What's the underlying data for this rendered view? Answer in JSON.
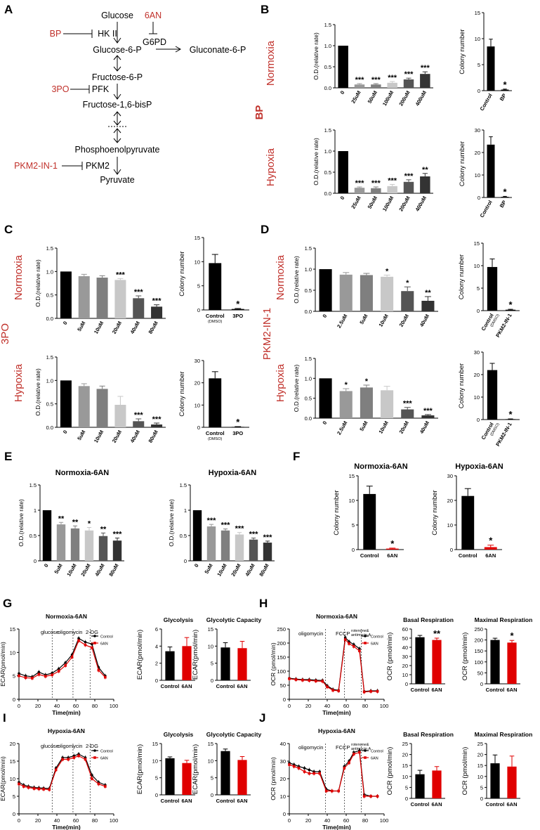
{
  "panels": {
    "A": "A",
    "B": "B",
    "C": "C",
    "D": "D",
    "E": "E",
    "F": "F",
    "G": "G",
    "H": "H",
    "I": "I",
    "J": "J"
  },
  "pathway": {
    "glucose": "Glucose",
    "g6p": "Glucose-6-P",
    "gluconate": "Gluconate-6-P",
    "g6pd": "G6PD",
    "f6p": "Fructose-6-P",
    "f16bp": "Fructose-1,6-bisP",
    "pep": "Phosphoenolpyruvate",
    "pyruvate": "Pyruvate",
    "hk2": "HK II",
    "pfk": "PFK",
    "pkm2": "PKM2",
    "inh_6an": "6AN",
    "inh_bp": "BP",
    "inh_3po": "3PO",
    "inh_pkm2": "PKM2-IN-1"
  },
  "labels": {
    "normoxia": "Normoxia",
    "hypoxia": "Hypoxia",
    "bp": "BP",
    "po3": "3PO",
    "pkm2": "PKM2-IN-1",
    "od": "O.D.(relative rate)",
    "colony": "Colony number",
    "ecar": "ECAR(pmol/min)",
    "ocr": "OCR (pmol/min)",
    "time": "Time(min)",
    "control": "Control",
    "dmso": "(DMSO)",
    "an6": "6AN",
    "norm6an": "Normoxia-6AN",
    "hyp6an": "Hypoxia-6AN",
    "glycolysis": "Glycolysis",
    "capacity": "Glycolytic Capacity",
    "basal": "Basal Respiration",
    "maximal": "Maximal Respiration",
    "inj_glucose": "glucose",
    "inj_oligo": "oligomycin",
    "inj_2dg": "2-DG",
    "inj_fccp": "FCCP",
    "inj_rot1": "rotenone&",
    "inj_rot2": "antimycin A"
  },
  "chart_data": [
    {
      "id": "B-norm-od",
      "type": "bar",
      "categories": [
        "0",
        "25uM",
        "50uM",
        "100uM",
        "200uM",
        "400uM"
      ],
      "values": [
        1.0,
        0.08,
        0.08,
        0.12,
        0.2,
        0.33
      ],
      "errors": [
        0,
        0.02,
        0.02,
        0.03,
        0.03,
        0.05
      ],
      "stars": [
        "",
        "***",
        "***",
        "***",
        "***",
        "***"
      ],
      "ylim": [
        0,
        1.5
      ],
      "yticks": [
        "0.0",
        "0.5",
        "1.0",
        "1.5"
      ],
      "ylabel": "O.D.(relative rate)"
    },
    {
      "id": "B-norm-col",
      "type": "bar",
      "categories": [
        "Control",
        "BP"
      ],
      "values": [
        8.5,
        0.2
      ],
      "errors": [
        1.4,
        0.1
      ],
      "stars": [
        "",
        "*"
      ],
      "ylim": [
        0,
        15
      ],
      "yticks": [
        "0",
        "5",
        "10",
        "15"
      ],
      "ylabel": "Colony number"
    },
    {
      "id": "B-hyp-od",
      "type": "bar",
      "categories": [
        "0",
        "25uM",
        "50uM",
        "100uM",
        "200uM",
        "400uM"
      ],
      "values": [
        1.0,
        0.13,
        0.12,
        0.17,
        0.27,
        0.4
      ],
      "errors": [
        0,
        0.02,
        0.03,
        0.04,
        0.05,
        0.07
      ],
      "stars": [
        "",
        "***",
        "***",
        "***",
        "***",
        "**"
      ],
      "ylim": [
        0,
        1.5
      ],
      "yticks": [
        "0.0",
        "0.5",
        "1.0",
        "1.5"
      ],
      "ylabel": "O.D.(relative rate)"
    },
    {
      "id": "B-hyp-col",
      "type": "bar",
      "categories": [
        "Control",
        "BP"
      ],
      "values": [
        23.5,
        0.3
      ],
      "errors": [
        3.5,
        0.2
      ],
      "stars": [
        "",
        "*"
      ],
      "ylim": [
        0,
        30
      ],
      "yticks": [
        "0",
        "10",
        "20",
        "30"
      ],
      "ylabel": "Colony number"
    },
    {
      "id": "C-norm-od",
      "type": "bar",
      "categories": [
        "0",
        "5uM",
        "10uM",
        "20uM",
        "40uM",
        "80uM"
      ],
      "values": [
        1.0,
        0.9,
        0.87,
        0.82,
        0.43,
        0.25
      ],
      "errors": [
        0,
        0.04,
        0.04,
        0.03,
        0.05,
        0.04
      ],
      "stars": [
        "",
        "",
        "",
        "***",
        "***",
        "***"
      ],
      "ylim": [
        0,
        1.5
      ],
      "yticks": [
        "0.0",
        "0.5",
        "1.0",
        "1.5"
      ],
      "ylabel": "O.D.(relative rate)"
    },
    {
      "id": "C-norm-col",
      "type": "bar",
      "categories": [
        "Control",
        "3PO"
      ],
      "values": [
        9.7,
        0.2
      ],
      "errors": [
        1.8,
        0.1
      ],
      "stars": [
        "",
        "*"
      ],
      "ylim": [
        0,
        15
      ],
      "yticks": [
        "0",
        "5",
        "10",
        "15"
      ],
      "ylabel": "Colony number"
    },
    {
      "id": "C-hyp-od",
      "type": "bar",
      "categories": [
        "0",
        "5uM",
        "10uM",
        "20uM",
        "40uM",
        "80uM"
      ],
      "values": [
        1.0,
        0.88,
        0.82,
        0.48,
        0.13,
        0.06
      ],
      "errors": [
        0,
        0.05,
        0.06,
        0.18,
        0.05,
        0.03
      ],
      "stars": [
        "",
        "",
        "",
        "",
        "***",
        "***"
      ],
      "ylim": [
        0,
        1.5
      ],
      "yticks": [
        "0.0",
        "0.5",
        "1.0",
        "1.5"
      ],
      "ylabel": "O.D.(relative rate)"
    },
    {
      "id": "C-hyp-col",
      "type": "bar",
      "categories": [
        "Control",
        "3PO"
      ],
      "values": [
        22,
        0.2
      ],
      "errors": [
        3,
        0.1
      ],
      "stars": [
        "",
        "*"
      ],
      "ylim": [
        0,
        30
      ],
      "yticks": [
        "0",
        "10",
        "20",
        "30"
      ],
      "ylabel": "Colony number"
    },
    {
      "id": "D-norm-od",
      "type": "bar",
      "categories": [
        "0",
        "2.5uM",
        "5uM",
        "10uM",
        "20uM",
        "40uM"
      ],
      "values": [
        1.0,
        0.87,
        0.86,
        0.82,
        0.48,
        0.25
      ],
      "errors": [
        0,
        0.05,
        0.04,
        0.04,
        0.1,
        0.1
      ],
      "stars": [
        "",
        "",
        "",
        "*",
        "*",
        "**"
      ],
      "ylim": [
        0,
        1.5
      ],
      "yticks": [
        "0.0",
        "0.5",
        "1.0",
        "1.5"
      ],
      "ylabel": "O.D.(relative rate)"
    },
    {
      "id": "D-norm-col",
      "type": "bar",
      "categories": [
        "Control",
        "PKM2-IN-1"
      ],
      "values": [
        9.7,
        0.2
      ],
      "errors": [
        1.8,
        0.1
      ],
      "stars": [
        "",
        "*"
      ],
      "ylim": [
        0,
        15
      ],
      "yticks": [
        "0",
        "5",
        "10",
        "15"
      ],
      "ylabel": "Colony number"
    },
    {
      "id": "D-hyp-od",
      "type": "bar",
      "categories": [
        "0",
        "2.5uM",
        "5uM",
        "10uM",
        "20uM",
        "40uM"
      ],
      "values": [
        1.0,
        0.68,
        0.77,
        0.7,
        0.22,
        0.07
      ],
      "errors": [
        0,
        0.06,
        0.06,
        0.1,
        0.05,
        0.02
      ],
      "stars": [
        "",
        "*",
        "*",
        "",
        "***",
        "***"
      ],
      "ylim": [
        0,
        1.5
      ],
      "yticks": [
        "0.0",
        "0.5",
        "1.0",
        "1.5"
      ],
      "ylabel": "O.D.(relative rate)"
    },
    {
      "id": "D-hyp-col",
      "type": "bar",
      "categories": [
        "Control",
        "PKM2-IN-1"
      ],
      "values": [
        22,
        0.2
      ],
      "errors": [
        3,
        0.1
      ],
      "stars": [
        "",
        "*"
      ],
      "ylim": [
        0,
        30
      ],
      "yticks": [
        "0",
        "10",
        "20",
        "30"
      ],
      "ylabel": "Colony number"
    },
    {
      "id": "E-norm",
      "type": "bar",
      "title": "Normoxia-6AN",
      "categories": [
        "0",
        "5uM",
        "10uM",
        "20uM",
        "40uM",
        "80uM"
      ],
      "values": [
        1.0,
        0.72,
        0.64,
        0.6,
        0.49,
        0.4
      ],
      "errors": [
        0,
        0.04,
        0.05,
        0.06,
        0.06,
        0.05
      ],
      "stars": [
        "",
        "**",
        "**",
        "*",
        "**",
        "***"
      ],
      "ylim": [
        0,
        1.5
      ],
      "yticks": [
        "0",
        "0.5",
        "1",
        "1.5"
      ],
      "ylabel": "O.D.(relative rate)"
    },
    {
      "id": "E-hyp",
      "type": "bar",
      "title": "Hypoxia-6AN",
      "categories": [
        "0",
        "5uM",
        "10uM",
        "20uM",
        "40uM",
        "80uM"
      ],
      "values": [
        1.0,
        0.68,
        0.6,
        0.52,
        0.42,
        0.36
      ],
      "errors": [
        0,
        0.04,
        0.03,
        0.04,
        0.03,
        0.03
      ],
      "stars": [
        "",
        "***",
        "***",
        "***",
        "***",
        "***"
      ],
      "ylim": [
        0,
        1.5
      ],
      "yticks": [
        "0",
        "0.5",
        "1",
        "1.5"
      ],
      "ylabel": "O.D.(relative rate)"
    },
    {
      "id": "F-norm",
      "type": "bar",
      "title": "Normoxia-6AN",
      "categories": [
        "Control",
        "6AN"
      ],
      "values": [
        11.3,
        0.2
      ],
      "errors": [
        1.6,
        0.1
      ],
      "stars": [
        "",
        "*"
      ],
      "ylim": [
        0,
        15
      ],
      "yticks": [
        "0",
        "5",
        "10",
        "15"
      ],
      "ylabel": "Colony number"
    },
    {
      "id": "F-hyp",
      "type": "bar",
      "title": "Hypoxia-6AN",
      "categories": [
        "Control",
        "6AN"
      ],
      "values": [
        21.8,
        1.0
      ],
      "errors": [
        3.0,
        0.8
      ],
      "stars": [
        "",
        "*"
      ],
      "ylim": [
        0,
        30
      ],
      "yticks": [
        "0",
        "10",
        "20",
        "30"
      ],
      "ylabel": "Colony number"
    },
    {
      "id": "G-line",
      "type": "line",
      "title": "Normoxia-6AN",
      "x": [
        0,
        7,
        14,
        21,
        28,
        35,
        42,
        49,
        56,
        63,
        70,
        77,
        84,
        91
      ],
      "series": [
        {
          "name": "Control",
          "values": [
            5.5,
            5,
            4.8,
            5.8,
            5.2,
            5.6,
            6.5,
            7.8,
            9.5,
            13,
            12.2,
            11.8,
            6.8,
            5
          ]
        },
        {
          "name": "6AN",
          "values": [
            5,
            4.6,
            4.5,
            5.3,
            4.9,
            5.2,
            6,
            7.2,
            9,
            12.5,
            11.6,
            11,
            6.2,
            4.7
          ]
        }
      ],
      "ylim": [
        0,
        15
      ],
      "xlim": [
        0,
        100
      ],
      "yticks": [
        "0",
        "5",
        "10",
        "15"
      ],
      "xticks": [
        "0",
        "20",
        "40",
        "60",
        "80",
        "100"
      ],
      "ylabel": "ECAR(pmol/min)",
      "xlabel": "Time(min)"
    },
    {
      "id": "G-gly",
      "type": "bar",
      "title": "Glycolysis",
      "categories": [
        "Control",
        "6AN"
      ],
      "values": [
        3.4,
        4.0
      ],
      "errors": [
        0.5,
        1.0
      ],
      "stars": [
        "",
        ""
      ],
      "ylim": [
        0,
        6
      ],
      "yticks": [
        "0",
        "2",
        "4",
        "6"
      ],
      "ylabel": "ECAR(pmol/min)"
    },
    {
      "id": "G-cap",
      "type": "bar",
      "title": "Glycolytic Capacity",
      "categories": [
        "Control",
        "6AN"
      ],
      "values": [
        9.6,
        9.4
      ],
      "errors": [
        1.4,
        2.0
      ],
      "stars": [
        "",
        ""
      ],
      "ylim": [
        0,
        15
      ],
      "yticks": [
        "0",
        "5",
        "10",
        "15"
      ],
      "ylabel": "ECAR(pmol/min)"
    },
    {
      "id": "H-line",
      "type": "line",
      "title": "Normoxia-6AN",
      "x": [
        0,
        7,
        14,
        21,
        28,
        35,
        40,
        46,
        52,
        59,
        63,
        68,
        74,
        79,
        86,
        93
      ],
      "series": [
        {
          "name": "Control",
          "values": [
            75,
            72,
            70,
            70,
            68,
            67,
            48,
            35,
            32,
            220,
            205,
            195,
            180,
            28,
            30,
            30
          ]
        },
        {
          "name": "6AN",
          "values": [
            73,
            70,
            68,
            67,
            65,
            64,
            44,
            32,
            30,
            212,
            198,
            188,
            172,
            26,
            28,
            28
          ]
        }
      ],
      "ylim": [
        0,
        250
      ],
      "xlim": [
        0,
        100
      ],
      "yticks": [
        "0",
        "50",
        "100",
        "150",
        "200",
        "250"
      ],
      "xticks": [
        "0",
        "20",
        "40",
        "60",
        "80",
        "100"
      ],
      "ylabel": "OCR (pmol/min)",
      "xlabel": "Time(min)"
    },
    {
      "id": "H-basal",
      "type": "bar",
      "title": "Basal Respiration",
      "categories": [
        "Control",
        "6AN"
      ],
      "values": [
        51,
        48
      ],
      "errors": [
        2,
        2
      ],
      "stars": [
        "",
        "**"
      ],
      "ylim": [
        0,
        60
      ],
      "yticks": [
        "0",
        "10",
        "20",
        "30",
        "40",
        "50",
        "60"
      ],
      "ylabel": "OCR (pmol/min)"
    },
    {
      "id": "H-max",
      "type": "bar",
      "title": "Maximal Respiration",
      "categories": [
        "Control",
        "6AN"
      ],
      "values": [
        200,
        188
      ],
      "errors": [
        8,
        10
      ],
      "stars": [
        "",
        "*"
      ],
      "ylim": [
        0,
        250
      ],
      "yticks": [
        "0",
        "50",
        "100",
        "150",
        "200",
        "250"
      ],
      "ylabel": "OCR (pmol/min)"
    },
    {
      "id": "I-line",
      "type": "line",
      "title": "Hypoxia-6AN",
      "x": [
        0,
        5,
        10,
        16,
        21,
        26,
        32,
        39,
        46,
        52,
        58,
        63,
        70,
        77,
        84,
        91
      ],
      "series": [
        {
          "name": "Control",
          "values": [
            9,
            8.2,
            7.8,
            7.5,
            7.4,
            7.3,
            7.2,
            13,
            16,
            16,
            16.5,
            17,
            16,
            11,
            9,
            8.2
          ]
        },
        {
          "name": "6AN",
          "values": [
            8.5,
            7.8,
            7.5,
            7.2,
            7.1,
            7,
            6.9,
            12.5,
            15.5,
            15.5,
            16,
            16.5,
            15.5,
            10,
            8.5,
            7.8
          ]
        }
      ],
      "ylim": [
        0,
        20
      ],
      "xlim": [
        0,
        100
      ],
      "yticks": [
        "0",
        "5",
        "10",
        "15",
        "20"
      ],
      "xticks": [
        "0",
        "20",
        "40",
        "60",
        "80",
        "100"
      ],
      "ylabel": "ECAR(pmol/min)",
      "xlabel": "Time(min)"
    },
    {
      "id": "I-gly",
      "type": "bar",
      "title": "Glycolysis",
      "categories": [
        "Control",
        "6AN"
      ],
      "values": [
        10.7,
        9.3
      ],
      "errors": [
        0.4,
        0.8
      ],
      "stars": [
        "",
        ""
      ],
      "ylim": [
        0,
        15
      ],
      "yticks": [
        "0",
        "5",
        "10",
        "15"
      ],
      "ylabel": "ECAR(pmol/min)"
    },
    {
      "id": "I-cap",
      "type": "bar",
      "title": "Glycolytic Capacity",
      "categories": [
        "Control",
        "6AN"
      ],
      "values": [
        12.8,
        10.2
      ],
      "errors": [
        0.6,
        1.0
      ],
      "stars": [
        "",
        ""
      ],
      "ylim": [
        0,
        15
      ],
      "yticks": [
        "0",
        "5",
        "10",
        "15"
      ],
      "ylabel": "ECAR(pmol/min)"
    },
    {
      "id": "J-line",
      "type": "line",
      "title": "Hypoxia-6AN",
      "x": [
        0,
        5,
        10,
        16,
        21,
        26,
        32,
        39,
        45,
        52,
        58,
        63,
        68,
        74,
        79,
        86,
        93
      ],
      "series": [
        {
          "name": "Control",
          "values": [
            29,
            28,
            27,
            26,
            25,
            24,
            24,
            14,
            13,
            13,
            27,
            30,
            35,
            36,
            11,
            10,
            10
          ]
        },
        {
          "name": "6AN",
          "values": [
            28,
            27,
            26,
            24,
            23,
            23,
            23,
            13,
            13,
            13,
            26,
            29,
            34,
            35,
            10,
            10,
            10
          ]
        }
      ],
      "ylim": [
        0,
        40
      ],
      "xlim": [
        0,
        100
      ],
      "yticks": [
        "0",
        "10",
        "20",
        "30",
        "40"
      ],
      "xticks": [
        "0",
        "20",
        "40",
        "60",
        "80",
        "100"
      ],
      "ylabel": "OCR (pmol/min)",
      "xlabel": "Time(min)"
    },
    {
      "id": "J-basal",
      "type": "bar",
      "title": "Basal Respiration",
      "categories": [
        "Control",
        "6AN"
      ],
      "values": [
        11,
        12.7
      ],
      "errors": [
        1.8,
        1.8
      ],
      "stars": [
        "",
        ""
      ],
      "ylim": [
        0,
        25
      ],
      "yticks": [
        "0",
        "5",
        "10",
        "15",
        "20",
        "25"
      ],
      "ylabel": "OCR (pmol/min)"
    },
    {
      "id": "J-max",
      "type": "bar",
      "title": "Maximal Respiration",
      "categories": [
        "Control",
        "6AN"
      ],
      "values": [
        16,
        14.5
      ],
      "errors": [
        3.8,
        4.8
      ],
      "stars": [
        "",
        ""
      ],
      "ylim": [
        0,
        25
      ],
      "yticks": [
        "0",
        "5",
        "10",
        "15",
        "20",
        "25"
      ],
      "ylabel": "OCR (pmol/min)"
    }
  ]
}
